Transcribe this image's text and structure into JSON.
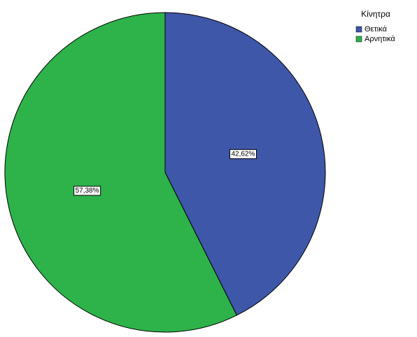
{
  "chart_data": {
    "type": "pie",
    "legend_title": "Κίνητρα",
    "categories": [
      "Θετικά",
      "Αρνητικά"
    ],
    "values": [
      42.62,
      57.38
    ],
    "value_labels": [
      "42,62%",
      "57,38%"
    ],
    "colors": [
      "#3f57a9",
      "#2db34a"
    ],
    "legend": "top-right"
  }
}
